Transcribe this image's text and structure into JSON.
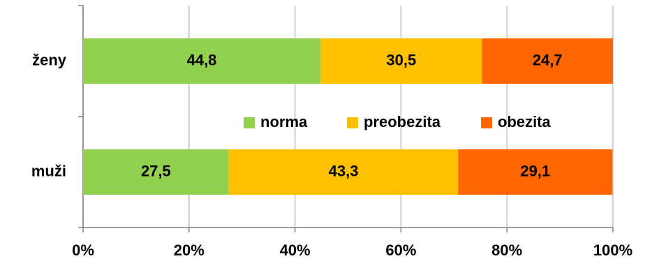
{
  "chart_data": {
    "type": "stacked-bar-horizontal",
    "categories": [
      "ženy",
      "muži"
    ],
    "series": [
      {
        "name": "norma",
        "color": "#92d050",
        "values": [
          44.8,
          27.5
        ],
        "value_labels": [
          "44,8",
          "27,5"
        ]
      },
      {
        "name": "preobezita",
        "color": "#ffc000",
        "values": [
          30.5,
          43.3
        ],
        "value_labels": [
          "30,5",
          "43,3"
        ]
      },
      {
        "name": "obezita",
        "color": "#ff6600",
        "values": [
          24.7,
          29.1
        ],
        "value_labels": [
          "24,7",
          "29,1"
        ]
      }
    ],
    "xlim": [
      0,
      100
    ],
    "xticks": [
      {
        "value": 0,
        "label": "0%"
      },
      {
        "value": 20,
        "label": "20%"
      },
      {
        "value": 40,
        "label": "40%"
      },
      {
        "value": 60,
        "label": "60%"
      },
      {
        "value": 80,
        "label": "80%"
      },
      {
        "value": 100,
        "label": "100%"
      }
    ],
    "grid": true
  }
}
